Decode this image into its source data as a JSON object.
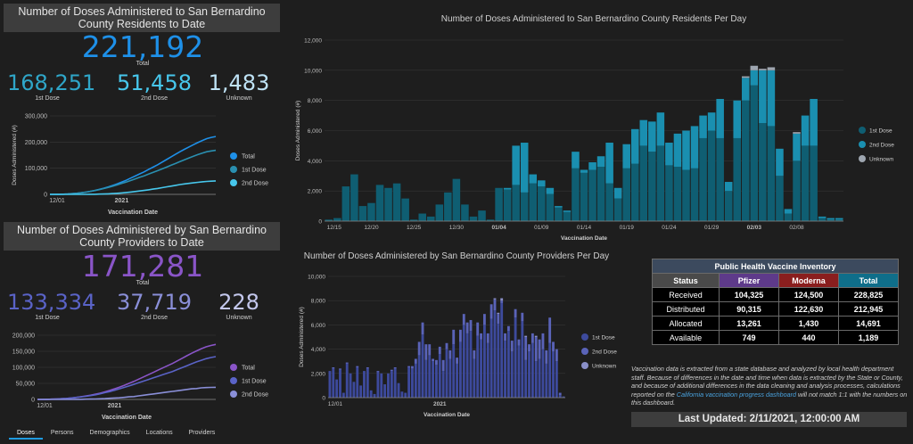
{
  "residents": {
    "header": "Number of Doses Administered to San Bernardino County Residents to Date",
    "total": "221,192",
    "total_label": "Total",
    "first": "168,251",
    "first_label": "1st Dose",
    "second": "51,458",
    "second_label": "2nd Dose",
    "unknown": "1,483",
    "unknown_label": "Unknown",
    "colors": {
      "total": "#1e90e8",
      "first": "#2fa6c8",
      "second": "#47c7ec",
      "unknown": "#bfe3f6"
    }
  },
  "providers": {
    "header": "Number of Doses Administered by San Bernardino County Providers to Date",
    "total": "171,281",
    "total_label": "Total",
    "first": "133,334",
    "first_label": "1st Dose",
    "second": "37,719",
    "second_label": "2nd Dose",
    "unknown": "228",
    "unknown_label": "Unknown",
    "colors": {
      "total": "#8a55c8",
      "first": "#5a63c7",
      "second": "#8a8fd8",
      "unknown": "#c3c7ec"
    }
  },
  "chart_data": [
    {
      "id": "res_cum",
      "type": "line",
      "ylabel": "Doses Administered (#)",
      "xlabel": "Vaccination Date",
      "ylim": [
        0,
        300000
      ],
      "yticks": [
        "0",
        "100,000",
        "200,000",
        "300,000"
      ],
      "xticks": [
        "12/01",
        "2021"
      ],
      "legend": [
        "Total",
        "1st Dose",
        "2nd Dose"
      ],
      "series": [
        {
          "name": "Total",
          "color": "#1e90e8",
          "values": [
            0,
            100,
            300,
            700,
            1500,
            2600,
            4000,
            6000,
            8500,
            11500,
            15000,
            19000,
            23500,
            28500,
            34000,
            40000,
            47000,
            54000,
            62000,
            70000,
            78000,
            86000,
            95000,
            104000,
            113000,
            123000,
            133000,
            143000,
            153000,
            163000,
            172000,
            181000,
            190000,
            198000,
            206000,
            213000,
            218000,
            221192
          ]
        },
        {
          "name": "1st Dose",
          "color": "#2a8fb0",
          "values": [
            0,
            100,
            300,
            700,
            1500,
            2600,
            4000,
            6000,
            8400,
            11200,
            14500,
            18000,
            22000,
            26500,
            31000,
            36000,
            41500,
            47000,
            53000,
            59000,
            65000,
            71000,
            77500,
            84000,
            90500,
            97000,
            104000,
            111000,
            118000,
            125000,
            132000,
            139000,
            146000,
            152000,
            158000,
            163000,
            166000,
            168251
          ]
        },
        {
          "name": "2nd Dose",
          "color": "#47c7ec",
          "values": [
            0,
            0,
            0,
            0,
            0,
            0,
            0,
            0,
            100,
            300,
            500,
            1000,
            1500,
            2000,
            3000,
            4000,
            5500,
            7000,
            9000,
            11000,
            13000,
            15000,
            17500,
            20000,
            22500,
            25500,
            28500,
            31500,
            34500,
            37500,
            40000,
            42000,
            44000,
            46000,
            48000,
            49500,
            50500,
            51458
          ]
        }
      ]
    },
    {
      "id": "res_daily",
      "type": "bar",
      "title": "Number of Doses Administered to San Bernardino County Residents Per Day",
      "ylabel": "Doses Administered (#)",
      "xlabel": "Vaccination Date",
      "ylim": [
        0,
        12000
      ],
      "yticks": [
        "0",
        "2,000",
        "4,000",
        "6,000",
        "8,000",
        "10,000",
        "12,000"
      ],
      "xticks": [
        "12/15",
        "12/20",
        "12/25",
        "12/30",
        "01/04",
        "01/09",
        "01/14",
        "01/19",
        "01/24",
        "01/29",
        "02/03",
        "02/08"
      ],
      "xtick_positions": [
        0,
        5,
        10,
        15,
        20,
        25,
        30,
        35,
        40,
        45,
        50,
        55
      ],
      "legend": [
        "1st Dose",
        "2nd Dose",
        "Unknown"
      ],
      "colors": [
        "#0f5e72",
        "#1a8fb0",
        "#9ea6b0"
      ],
      "series": [
        {
          "name": "1st Dose",
          "values": [
            100,
            200,
            2300,
            3100,
            1000,
            1200,
            2400,
            2200,
            2500,
            1500,
            100,
            500,
            300,
            1100,
            1900,
            2800,
            1100,
            300,
            700,
            100,
            2200,
            2100,
            2400,
            1900,
            2500,
            2300,
            1800,
            900,
            600,
            3500,
            3200,
            3400,
            3600,
            2500,
            1500,
            3500,
            3800,
            5000,
            4600,
            5000,
            3700,
            3600,
            3400,
            3500,
            5500,
            6000,
            5500,
            2000,
            5500,
            8000,
            9000,
            6500,
            6300,
            3000,
            500,
            4000,
            5000,
            5000,
            200,
            100,
            100
          ]
        },
        {
          "name": "2nd Dose",
          "values": [
            0,
            0,
            0,
            0,
            0,
            0,
            0,
            0,
            0,
            0,
            0,
            0,
            0,
            0,
            0,
            0,
            0,
            0,
            0,
            0,
            0,
            100,
            2600,
            3300,
            600,
            400,
            400,
            100,
            100,
            1100,
            200,
            500,
            700,
            2700,
            700,
            1600,
            2300,
            1700,
            2000,
            2200,
            1500,
            2200,
            2600,
            2800,
            1500,
            1200,
            2600,
            600,
            2500,
            1500,
            1000,
            3500,
            3700,
            1800,
            300,
            1800,
            2000,
            3100,
            100,
            100,
            100
          ]
        },
        {
          "name": "Unknown",
          "values": [
            0,
            0,
            0,
            0,
            0,
            0,
            0,
            0,
            0,
            0,
            0,
            0,
            0,
            0,
            0,
            0,
            0,
            0,
            0,
            0,
            0,
            0,
            0,
            0,
            0,
            0,
            0,
            0,
            0,
            0,
            0,
            0,
            0,
            0,
            0,
            0,
            0,
            0,
            0,
            0,
            0,
            0,
            0,
            0,
            0,
            0,
            0,
            0,
            0,
            100,
            300,
            100,
            200,
            0,
            0,
            100,
            0,
            0,
            0,
            0,
            0
          ]
        }
      ]
    },
    {
      "id": "prov_cum",
      "type": "line",
      "ylabel": "",
      "xlabel": "Vaccination Date",
      "ylim": [
        0,
        200000
      ],
      "yticks": [
        "0",
        "50,000",
        "100,000",
        "150,000",
        "200,000"
      ],
      "xticks": [
        "12/01",
        "2021"
      ],
      "legend": [
        "Total",
        "1st Dose",
        "2nd Dose"
      ],
      "series": [
        {
          "name": "Total",
          "color": "#8a55c8",
          "values": [
            0,
            100,
            300,
            700,
            1300,
            2100,
            3100,
            4500,
            6200,
            8200,
            10500,
            13000,
            16000,
            19500,
            23500,
            28000,
            33000,
            38000,
            44000,
            50000,
            56000,
            63000,
            70000,
            77000,
            84000,
            91000,
            98000,
            105000,
            112000,
            120000,
            128000,
            136000,
            144000,
            151000,
            158000,
            164000,
            168000,
            171281
          ]
        },
        {
          "name": "1st Dose",
          "color": "#5a63c7",
          "values": [
            0,
            100,
            300,
            700,
            1300,
            2100,
            3100,
            4400,
            6000,
            7800,
            9800,
            12000,
            14500,
            17500,
            21000,
            24500,
            28500,
            33000,
            37500,
            42000,
            47000,
            52000,
            57000,
            62000,
            67000,
            72000,
            77000,
            82000,
            87000,
            93000,
            99000,
            105000,
            111000,
            117000,
            122000,
            127000,
            130500,
            133334
          ]
        },
        {
          "name": "2nd Dose",
          "color": "#8a8fd8",
          "values": [
            0,
            0,
            0,
            0,
            0,
            0,
            0,
            100,
            200,
            400,
            700,
            1000,
            1500,
            2000,
            2500,
            3500,
            4500,
            5000,
            6500,
            8000,
            9000,
            11000,
            13000,
            15000,
            17000,
            19000,
            21000,
            23000,
            25000,
            27000,
            29000,
            31000,
            33000,
            34000,
            36000,
            37000,
            37500,
            37719
          ]
        }
      ]
    },
    {
      "id": "prov_daily",
      "type": "bar",
      "title": "Number of Doses Administered by San Bernardino County Providers Per Day",
      "ylabel": "Doses Administered (#)",
      "xlabel": "Vaccination Date",
      "ylim": [
        0,
        10000
      ],
      "yticks": [
        "0",
        "2,000",
        "4,000",
        "6,000",
        "8,000",
        "10,000"
      ],
      "xticks": [
        "12/01",
        "2021"
      ],
      "xtick_positions": [
        0,
        32
      ],
      "legend": [
        "1st Dose",
        "2nd Dose",
        "Unknown"
      ],
      "colors": [
        "#3d4a9c",
        "#5a63b8",
        "#8a8fc8"
      ],
      "series": [
        {
          "name": "1st Dose",
          "values": [
            2200,
            2400,
            1500,
            2300,
            400,
            2800,
            2000,
            1300,
            2500,
            1000,
            2200,
            2400,
            600,
            300,
            2100,
            2000,
            1100,
            2000,
            2200,
            2400,
            1200,
            500,
            400,
            2500,
            2400,
            2800,
            3500,
            5200,
            3100,
            3500,
            3000,
            2700,
            3600,
            2200,
            4000,
            3200,
            4400,
            2800,
            4600,
            6000,
            5300,
            5500,
            3200,
            5100,
            4800,
            6000,
            4500,
            6500,
            7200,
            6100,
            7800,
            4700,
            5500,
            3800,
            6600,
            4300,
            6300,
            3100,
            3800,
            4500,
            3000,
            3200,
            4000,
            2800,
            4500,
            3800,
            3000,
            200,
            100
          ]
        },
        {
          "name": "2nd Dose",
          "values": [
            0,
            100,
            0,
            100,
            0,
            100,
            0,
            0,
            100,
            0,
            0,
            100,
            0,
            0,
            100,
            0,
            0,
            0,
            100,
            100,
            0,
            0,
            0,
            100,
            200,
            400,
            1100,
            1000,
            1300,
            900,
            200,
            400,
            600,
            900,
            500,
            700,
            1200,
            500,
            1000,
            900,
            900,
            900,
            700,
            1100,
            500,
            900,
            800,
            1200,
            900,
            800,
            200,
            600,
            400,
            900,
            700,
            500,
            700,
            1900,
            600,
            800,
            2000,
            1600,
            1300,
            1100,
            2100,
            800,
            1000,
            200,
            0
          ]
        },
        {
          "name": "Unknown",
          "values": [
            0,
            0,
            0,
            0,
            0,
            0,
            0,
            0,
            0,
            0,
            0,
            0,
            0,
            0,
            0,
            0,
            0,
            0,
            0,
            0,
            0,
            0,
            0,
            0,
            0,
            0,
            0,
            0,
            0,
            0,
            0,
            0,
            0,
            0,
            0,
            0,
            0,
            0,
            0,
            0,
            0,
            0,
            0,
            0,
            0,
            0,
            0,
            0,
            100,
            100,
            200,
            0,
            0,
            0,
            0,
            0,
            0,
            100,
            0,
            0,
            100,
            0,
            0,
            0,
            0,
            0,
            0,
            0,
            0
          ]
        }
      ]
    },
    {
      "id": "inventory",
      "type": "table",
      "title": "Public Health Vaccine Inventory",
      "columns": [
        "Status",
        "Pfizer",
        "Moderna",
        "Total"
      ],
      "header_colors": [
        "#4a4a4a",
        "#5e3a8a",
        "#8a1e1e",
        "#0f6e8a"
      ],
      "rows": [
        [
          "Received",
          "104,325",
          "124,500",
          "228,825"
        ],
        [
          "Distributed",
          "90,315",
          "122,630",
          "212,945"
        ],
        [
          "Allocated",
          "13,261",
          "1,430",
          "14,691"
        ],
        [
          "Available",
          "749",
          "440",
          "1,189"
        ]
      ]
    }
  ],
  "note": {
    "text_before": "Vaccination data is extracted from a state database and analyzed by local health department staff. Because of differences in the date and time when data is extracted by the State or County, and because of additional differences in the data cleaning and analysis processes, calculations reported on the ",
    "link": "California vaccination progress dashboard",
    "text_after": " will not match 1:1 with the numbers on this dashboard."
  },
  "last_updated": "Last Updated: 2/11/2021, 12:00:00 AM",
  "tabs": [
    "Doses",
    "Persons",
    "Demographics",
    "Locations",
    "Providers"
  ]
}
